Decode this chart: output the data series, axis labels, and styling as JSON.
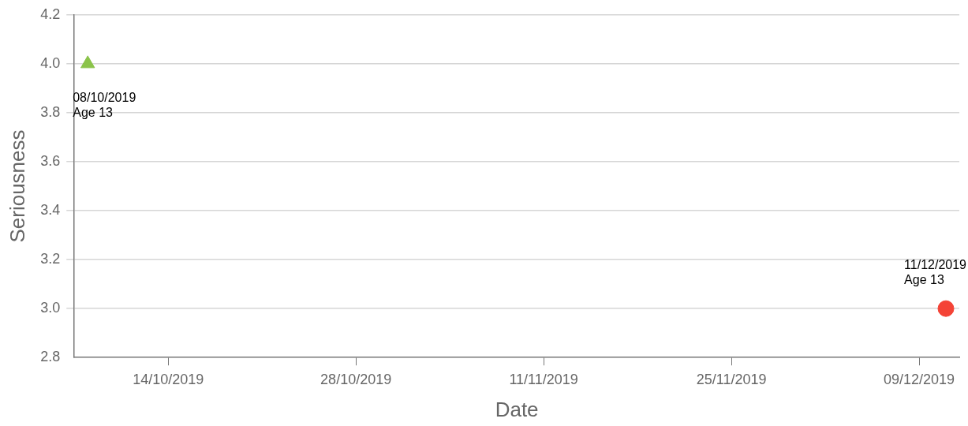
{
  "chart_data": {
    "type": "scatter",
    "xlabel": "Date",
    "ylabel": "Seriousness",
    "series": [
      {
        "color": "#8bc34a",
        "marker": "triangle",
        "x": [
          "2019-10-08"
        ],
        "values": [
          4.0
        ]
      },
      {
        "color": "#f44336",
        "marker": "circle",
        "x": [
          "2019-12-11"
        ],
        "values": [
          3.0
        ]
      }
    ],
    "xlim": [
      "2019-10-07",
      "2019-12-12"
    ],
    "xticks": [
      {
        "value": "2019-10-14",
        "label": "14/10/2019"
      },
      {
        "value": "2019-10-28",
        "label": "28/10/2019"
      },
      {
        "value": "2019-11-11",
        "label": "11/11/2019"
      },
      {
        "value": "2019-11-25",
        "label": "25/11/2019"
      },
      {
        "value": "2019-12-09",
        "label": "09/12/2019"
      }
    ],
    "ylim": [
      2.8,
      4.2
    ],
    "yticks": [
      {
        "value": 2.8,
        "label": "2.8"
      },
      {
        "value": 3.0,
        "label": "3.0"
      },
      {
        "value": 3.2,
        "label": "3.2"
      },
      {
        "value": 3.4,
        "label": "3.4"
      },
      {
        "value": 3.6,
        "label": "3.6"
      },
      {
        "value": 3.8,
        "label": "3.8"
      },
      {
        "value": 4.0,
        "label": "4.0"
      },
      {
        "value": 4.2,
        "label": "4.2"
      }
    ],
    "grid": "y",
    "annotations": [
      {
        "text": "08/10/2019\nAge 13",
        "x": "2019-10-08",
        "y": 4.0
      },
      {
        "text": "11/12/2019\nAge 13",
        "x": "2019-12-11",
        "y": 3.0
      }
    ]
  }
}
